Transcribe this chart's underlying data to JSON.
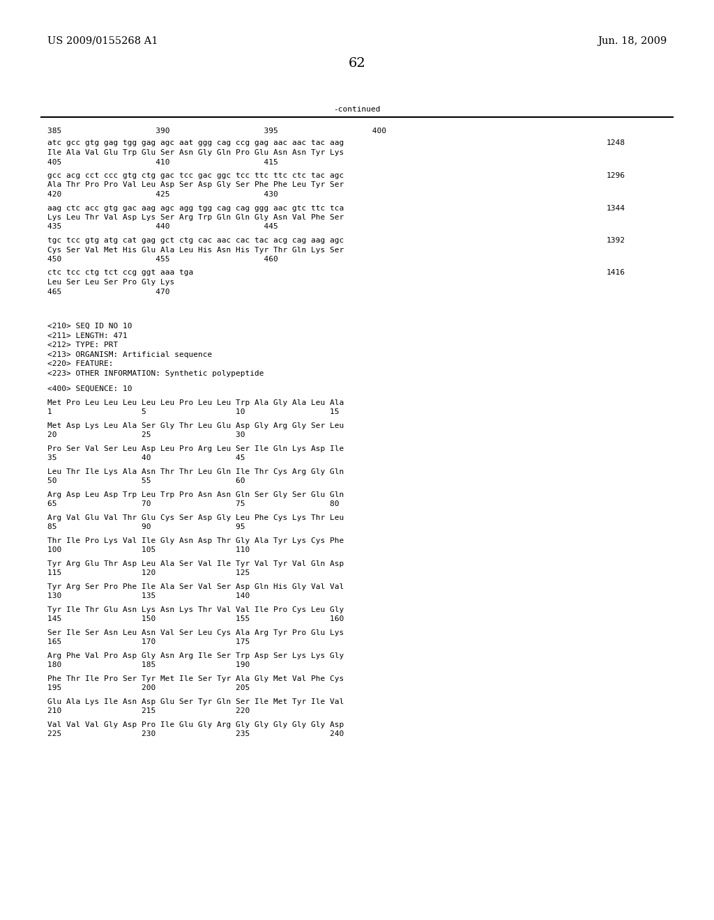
{
  "header_left": "US 2009/0155268 A1",
  "header_right": "Jun. 18, 2009",
  "page_number": "62",
  "continued_label": "-continued",
  "background_color": "#ffffff",
  "text_color": "#000000",
  "font_size_header": 10.5,
  "font_size_body": 8.0,
  "font_size_page": 14,
  "content_blocks": [
    {
      "lines": [
        {
          "text": "385                    390                    395                    400",
          "mono": false
        },
        {
          "text": "",
          "mono": false
        },
        {
          "text": "atc gcc gtg gag tgg gag agc aat ggg cag ccg gag aac aac tac aag",
          "mono": true
        },
        {
          "text": "Ile Ala Val Glu Trp Glu Ser Asn Gly Gln Pro Glu Asn Asn Tyr Lys",
          "mono": true
        },
        {
          "text": "405                    410                    415",
          "mono": false
        }
      ],
      "right_num": "1248"
    },
    {
      "lines": [
        {
          "text": "",
          "mono": false
        },
        {
          "text": "gcc acg cct ccc gtg ctg gac tcc gac ggc tcc ttc ttc ctc tac agc",
          "mono": true
        },
        {
          "text": "Ala Thr Pro Pro Val Leu Asp Ser Asp Gly Ser Phe Phe Leu Tyr Ser",
          "mono": true
        },
        {
          "text": "420                    425                    430",
          "mono": false
        }
      ],
      "right_num": "1296"
    },
    {
      "lines": [
        {
          "text": "",
          "mono": false
        },
        {
          "text": "aag ctc acc gtg gac aag agc agg tgg cag cag ggg aac gtc ttc tca",
          "mono": true
        },
        {
          "text": "Lys Leu Thr Val Asp Lys Ser Arg Trp Gln Gln Gly Asn Val Phe Ser",
          "mono": true
        },
        {
          "text": "435                    440                    445",
          "mono": false
        }
      ],
      "right_num": "1344"
    },
    {
      "lines": [
        {
          "text": "",
          "mono": false
        },
        {
          "text": "tgc tcc gtg atg cat gag gct ctg cac aac cac tac acg cag aag agc",
          "mono": true
        },
        {
          "text": "Cys Ser Val Met His Glu Ala Leu His Asn His Tyr Thr Gln Lys Ser",
          "mono": true
        },
        {
          "text": "450                    455                    460",
          "mono": false
        }
      ],
      "right_num": "1392"
    },
    {
      "lines": [
        {
          "text": "",
          "mono": false
        },
        {
          "text": "ctc tcc ctg tct ccg ggt aaa tga",
          "mono": true
        },
        {
          "text": "Leu Ser Leu Ser Pro Gly Lys",
          "mono": true
        },
        {
          "text": "465                    470",
          "mono": false
        }
      ],
      "right_num": "1416"
    }
  ],
  "meta_lines": [
    "",
    "",
    "<210> SEQ ID NO 10",
    "<211> LENGTH: 471",
    "<212> TYPE: PRT",
    "<213> ORGANISM: Artificial sequence",
    "<220> FEATURE:",
    "<223> OTHER INFORMATION: Synthetic polypeptide",
    "",
    "<400> SEQUENCE: 10"
  ],
  "seq_blocks": [
    {
      "aa_line": "Met Pro Leu Leu Leu Leu Leu Pro Leu Leu Trp Ala Gly Ala Leu Ala",
      "num_line": "1                   5                   10                  15"
    },
    {
      "aa_line": "Met Asp Lys Leu Ala Ser Gly Thr Leu Glu Asp Gly Arg Gly Ser Leu",
      "num_line": "20                  25                  30"
    },
    {
      "aa_line": "Pro Ser Val Ser Leu Asp Leu Pro Arg Leu Ser Ile Gln Lys Asp Ile",
      "num_line": "35                  40                  45"
    },
    {
      "aa_line": "Leu Thr Ile Lys Ala Asn Thr Thr Leu Gln Ile Thr Cys Arg Gly Gln",
      "num_line": "50                  55                  60"
    },
    {
      "aa_line": "Arg Asp Leu Asp Trp Leu Trp Pro Asn Asn Gln Ser Gly Ser Glu Gln",
      "num_line": "65                  70                  75                  80"
    },
    {
      "aa_line": "Arg Val Glu Val Thr Glu Cys Ser Asp Gly Leu Phe Cys Lys Thr Leu",
      "num_line": "85                  90                  95"
    },
    {
      "aa_line": "Thr Ile Pro Lys Val Ile Gly Asn Asp Thr Gly Ala Tyr Lys Cys Phe",
      "num_line": "100                 105                 110"
    },
    {
      "aa_line": "Tyr Arg Glu Thr Asp Leu Ala Ser Val Ile Tyr Val Tyr Val Gln Asp",
      "num_line": "115                 120                 125"
    },
    {
      "aa_line": "Tyr Arg Ser Pro Phe Ile Ala Ser Val Ser Asp Gln His Gly Val Val",
      "num_line": "130                 135                 140"
    },
    {
      "aa_line": "Tyr Ile Thr Glu Asn Lys Asn Lys Thr Val Val Ile Pro Cys Leu Gly",
      "num_line": "145                 150                 155                 160"
    },
    {
      "aa_line": "Ser Ile Ser Asn Leu Asn Val Ser Leu Cys Ala Arg Tyr Pro Glu Lys",
      "num_line": "165                 170                 175"
    },
    {
      "aa_line": "Arg Phe Val Pro Asp Gly Asn Arg Ile Ser Trp Asp Ser Lys Lys Gly",
      "num_line": "180                 185                 190"
    },
    {
      "aa_line": "Phe Thr Ile Pro Ser Tyr Met Ile Ser Tyr Ala Gly Met Val Phe Cys",
      "num_line": "195                 200                 205"
    },
    {
      "aa_line": "Glu Ala Lys Ile Asn Asp Glu Ser Tyr Gln Ser Ile Met Tyr Ile Val",
      "num_line": "210                 215                 220"
    },
    {
      "aa_line": "Val Val Val Gly Asp Pro Ile Glu Gly Arg Gly Gly Gly Gly Gly Asp",
      "num_line": "225                 230                 235                 240"
    }
  ]
}
